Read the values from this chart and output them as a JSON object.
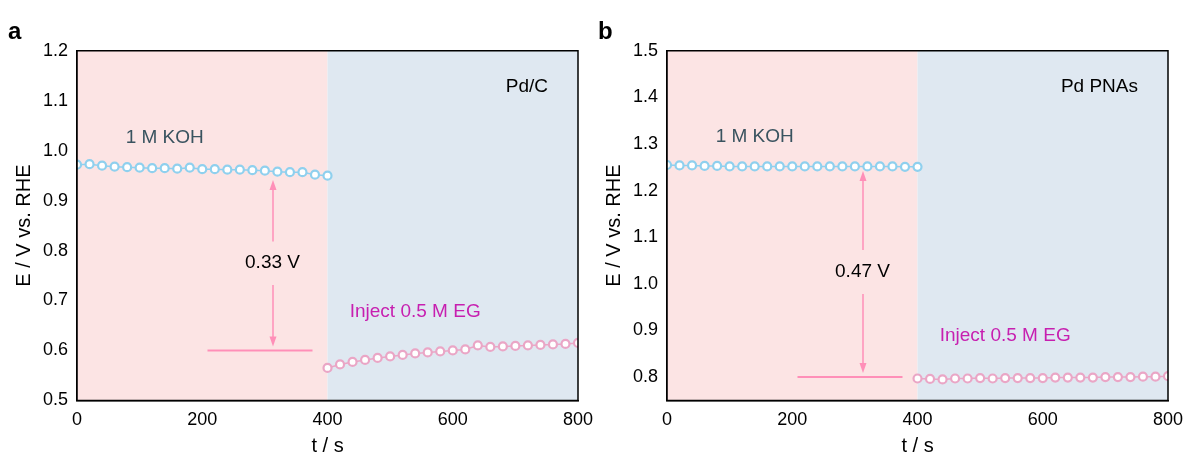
{
  "chart_data": [
    {
      "type": "line",
      "title": "a",
      "xlabel": "t / s",
      "ylabel": "E / V vs. RHE",
      "xlim": [
        0,
        800
      ],
      "xticks": [
        0,
        200,
        400,
        600,
        800
      ],
      "ylim": [
        0.5,
        1.2
      ],
      "yticks": [
        0.5,
        0.6,
        0.7,
        0.8,
        0.9,
        {
          "value": 1,
          "label": "1.0"
        },
        1.1,
        1.2
      ],
      "grid": false,
      "legend": false,
      "marker": "circle",
      "series": [
        {
          "name": "1 M KOH",
          "color": "#8fd0ee",
          "x": [
            0,
            20,
            40,
            60,
            80,
            100,
            120,
            140,
            160,
            180,
            200,
            220,
            240,
            260,
            280,
            300,
            320,
            340,
            360,
            380,
            400
          ],
          "values": [
            0.972,
            0.973,
            0.97,
            0.968,
            0.967,
            0.966,
            0.965,
            0.965,
            0.964,
            0.966,
            0.963,
            0.963,
            0.962,
            0.962,
            0.961,
            0.96,
            0.958,
            0.957,
            0.957,
            0.952,
            0.95
          ]
        },
        {
          "name": "Inject 0.5 M EG",
          "color": "#eaa6c6",
          "x": [
            400,
            420,
            440,
            460,
            480,
            500,
            520,
            540,
            560,
            580,
            600,
            620,
            640,
            660,
            680,
            700,
            720,
            740,
            760,
            780,
            800
          ],
          "values": [
            0.565,
            0.572,
            0.577,
            0.581,
            0.585,
            0.588,
            0.591,
            0.594,
            0.596,
            0.598,
            0.6,
            0.602,
            0.61,
            0.607,
            0.608,
            0.609,
            0.61,
            0.611,
            0.612,
            0.613,
            0.615
          ]
        }
      ],
      "bands": [
        {
          "axis": "x",
          "from": 0,
          "to": 400,
          "color": "#fce4e4"
        },
        {
          "axis": "x",
          "from": 400,
          "to": 800,
          "color": "#dfe8f1"
        }
      ],
      "ref_lines": [
        {
          "axis": "y",
          "value": 0.6,
          "color": "#ff8fb8"
        }
      ],
      "annotations": [
        "0.33 V",
        "Pd/C"
      ]
    },
    {
      "type": "line",
      "title": "b",
      "xlabel": "t / s",
      "ylabel": "E / V vs. RHE",
      "xlim": [
        0,
        800
      ],
      "xticks": [
        0,
        200,
        400,
        600,
        800
      ],
      "ylim": [
        0.75,
        1.5
      ],
      "yticks": [
        0.8,
        0.9,
        {
          "value": 1,
          "label": "1.0"
        },
        1.1,
        1.2,
        1.3,
        1.4,
        1.5
      ],
      "grid": false,
      "legend": false,
      "marker": "circle",
      "series": [
        {
          "name": "1 M KOH",
          "color": "#8fd0ee",
          "x": [
            0,
            20,
            40,
            60,
            80,
            100,
            120,
            140,
            160,
            180,
            200,
            220,
            240,
            260,
            280,
            300,
            320,
            340,
            360,
            380,
            400
          ],
          "values": [
            1.255,
            1.254,
            1.254,
            1.253,
            1.253,
            1.252,
            1.252,
            1.252,
            1.252,
            1.252,
            1.252,
            1.252,
            1.252,
            1.252,
            1.252,
            1.252,
            1.252,
            1.252,
            1.252,
            1.251,
            1.251
          ]
        },
        {
          "name": "Inject 0.5 M EG",
          "color": "#eaa6c6",
          "x": [
            400,
            420,
            440,
            460,
            480,
            500,
            520,
            540,
            560,
            580,
            600,
            620,
            640,
            660,
            680,
            700,
            720,
            740,
            760,
            780,
            800
          ],
          "values": [
            0.797,
            0.796,
            0.795,
            0.797,
            0.797,
            0.798,
            0.797,
            0.798,
            0.798,
            0.798,
            0.798,
            0.799,
            0.799,
            0.799,
            0.799,
            0.8,
            0.8,
            0.8,
            0.801,
            0.801,
            0.802
          ]
        }
      ],
      "bands": [
        {
          "axis": "x",
          "from": 0,
          "to": 400,
          "color": "#fce4e4"
        },
        {
          "axis": "x",
          "from": 400,
          "to": 800,
          "color": "#dfe8f1"
        }
      ],
      "ref_lines": [
        {
          "axis": "y",
          "value": 0.8,
          "color": "#ff8fb8"
        }
      ],
      "annotations": [
        "0.47 V",
        "Pd PNAs"
      ]
    }
  ]
}
